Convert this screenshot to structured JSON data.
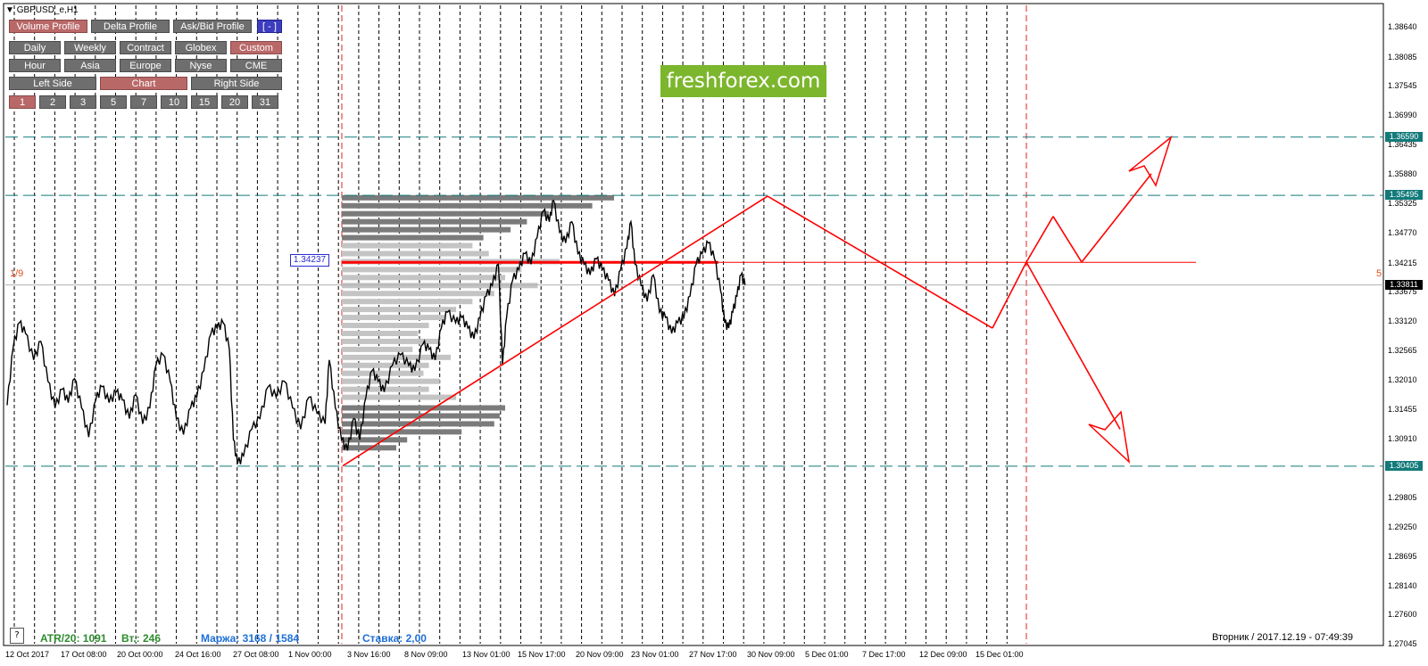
{
  "window": {
    "symbol": "GBPUSD_e,H1"
  },
  "toolbar": {
    "row1": [
      {
        "label": "Volume Profile",
        "active": true
      },
      {
        "label": "Delta Profile",
        "active": false
      },
      {
        "label": "Ask/Bid Profile",
        "active": false
      },
      {
        "label": "[ - ]",
        "active": false,
        "blue": true
      }
    ],
    "row2": [
      {
        "label": "Daily",
        "active": false
      },
      {
        "label": "Weekly",
        "active": false
      },
      {
        "label": "Contract",
        "active": false
      },
      {
        "label": "Globex",
        "active": false
      },
      {
        "label": "Custom",
        "active": true
      }
    ],
    "row3": [
      {
        "label": "Hour",
        "active": false
      },
      {
        "label": "Asia",
        "active": false
      },
      {
        "label": "Europe",
        "active": false
      },
      {
        "label": "Nyse",
        "active": false
      },
      {
        "label": "CME",
        "active": false
      }
    ],
    "row4": [
      {
        "label": "Left Side",
        "active": false
      },
      {
        "label": "Chart",
        "active": true
      },
      {
        "label": "Right Side",
        "active": false
      }
    ],
    "row5": [
      {
        "label": "1",
        "active": true
      },
      {
        "label": "2",
        "active": false
      },
      {
        "label": "3",
        "active": false
      },
      {
        "label": "5",
        "active": false
      },
      {
        "label": "7",
        "active": false
      },
      {
        "label": "10",
        "active": false
      },
      {
        "label": "15",
        "active": false
      },
      {
        "label": "20",
        "active": false
      },
      {
        "label": "31",
        "active": false
      }
    ]
  },
  "logo": {
    "text": "freshforex.com"
  },
  "profile": {
    "poc_label": "1.34237",
    "left_marker": "1/9",
    "right_marker": "5"
  },
  "status_bar": {
    "help": "?",
    "atr": "ATR/20: 1091",
    "vt": "Вт.: 246",
    "margin": "Маржа: 3168 / 1584",
    "rate": "Ставка: 2,00",
    "datetime": "Вторник  /  2017.12.19  -  07:49:39"
  },
  "colors": {
    "candles": "#000000",
    "profile_dark": "#7b7b7b",
    "profile_light": "#c4c4c4",
    "poc_line": "#ff0000",
    "pattern": "#ff0000",
    "level_lines": "#127a7a",
    "status_green": "#2e8b2e",
    "status_blue": "#1e6fd9",
    "logo_bg": "#7cb62d"
  },
  "chart_data": {
    "type": "line",
    "series_kind": "candlestick (approximated as close-price path)",
    "price_ticks": [
      "1.38640",
      "1.38085",
      "1.37545",
      "1.36990",
      "1.36435",
      "1.35880",
      "1.35325",
      "1.34770",
      "1.34215",
      "1.33675",
      "1.33120",
      "1.32565",
      "1.32010",
      "1.31455",
      "1.30910",
      "1.29805",
      "1.29250",
      "1.28695",
      "1.28140",
      "1.27600",
      "1.27045"
    ],
    "price_tags": [
      {
        "value": "1.36590",
        "style": "teal"
      },
      {
        "value": "1.35495",
        "style": "teal"
      },
      {
        "value": "1.33811",
        "style": "dark"
      },
      {
        "value": "1.30405",
        "style": "teal"
      }
    ],
    "time_labels": [
      "12 Oct 2017",
      "17 Oct 08:00",
      "20 Oct 00:00",
      "24 Oct 16:00",
      "27 Oct 08:00",
      "1 Nov 00:00",
      "3 Nov 16:00",
      "8 Nov 09:00",
      "13 Nov 01:00",
      "15 Nov 17:00",
      "20 Nov 09:00",
      "23 Nov 01:00",
      "27 Nov 17:00",
      "30 Nov 09:00",
      "5 Dec 01:00",
      "7 Dec 17:00",
      "12 Dec 09:00",
      "15 Dec 01:00"
    ],
    "ylim": [
      1.269,
      1.39
    ],
    "levels": [
      1.3659,
      1.35495,
      1.30405
    ],
    "poc": 1.34237,
    "last_price": 1.33811,
    "price_path": [
      [
        0.0,
        1.3155
      ],
      [
        0.006,
        1.3265
      ],
      [
        0.012,
        1.331
      ],
      [
        0.018,
        1.329
      ],
      [
        0.026,
        1.324
      ],
      [
        0.033,
        1.3275
      ],
      [
        0.04,
        1.32
      ],
      [
        0.047,
        1.315
      ],
      [
        0.054,
        1.3185
      ],
      [
        0.06,
        1.316
      ],
      [
        0.066,
        1.3205
      ],
      [
        0.073,
        1.315
      ],
      [
        0.08,
        1.3095
      ],
      [
        0.087,
        1.3165
      ],
      [
        0.093,
        1.319
      ],
      [
        0.1,
        1.316
      ],
      [
        0.107,
        1.318
      ],
      [
        0.113,
        1.3165
      ],
      [
        0.12,
        1.313
      ],
      [
        0.126,
        1.3175
      ],
      [
        0.133,
        1.312
      ],
      [
        0.14,
        1.315
      ],
      [
        0.146,
        1.323
      ],
      [
        0.153,
        1.325
      ],
      [
        0.16,
        1.32
      ],
      [
        0.166,
        1.313
      ],
      [
        0.173,
        1.31
      ],
      [
        0.18,
        1.315
      ],
      [
        0.186,
        1.317
      ],
      [
        0.193,
        1.322
      ],
      [
        0.2,
        1.329
      ],
      [
        0.206,
        1.33
      ],
      [
        0.212,
        1.331
      ],
      [
        0.218,
        1.326
      ],
      [
        0.222,
        1.309
      ],
      [
        0.226,
        1.3045
      ],
      [
        0.232,
        1.306
      ],
      [
        0.24,
        1.311
      ],
      [
        0.248,
        1.313
      ],
      [
        0.256,
        1.319
      ],
      [
        0.264,
        1.317
      ],
      [
        0.272,
        1.32
      ],
      [
        0.28,
        1.315
      ],
      [
        0.288,
        1.311
      ],
      [
        0.296,
        1.317
      ],
      [
        0.304,
        1.314
      ],
      [
        0.312,
        1.312
      ],
      [
        0.316,
        1.324
      ],
      [
        0.322,
        1.315
      ],
      [
        0.328,
        1.309
      ],
      [
        0.334,
        1.307
      ],
      [
        0.34,
        1.313
      ],
      [
        0.346,
        1.309
      ],
      [
        0.352,
        1.317
      ],
      [
        0.358,
        1.322
      ],
      [
        0.364,
        1.32
      ],
      [
        0.37,
        1.318
      ],
      [
        0.378,
        1.323
      ],
      [
        0.386,
        1.325
      ],
      [
        0.394,
        1.323
      ],
      [
        0.4,
        1.322
      ],
      [
        0.408,
        1.327
      ],
      [
        0.414,
        1.326
      ],
      [
        0.42,
        1.324
      ],
      [
        0.426,
        1.33
      ],
      [
        0.432,
        1.333
      ],
      [
        0.44,
        1.331
      ],
      [
        0.446,
        1.332
      ],
      [
        0.452,
        1.33
      ],
      [
        0.458,
        1.328
      ],
      [
        0.464,
        1.332
      ],
      [
        0.47,
        1.336
      ],
      [
        0.476,
        1.338
      ],
      [
        0.482,
        1.342
      ],
      [
        0.486,
        1.323
      ],
      [
        0.49,
        1.332
      ],
      [
        0.496,
        1.339
      ],
      [
        0.502,
        1.341
      ],
      [
        0.508,
        1.344
      ],
      [
        0.514,
        1.342
      ],
      [
        0.52,
        1.347
      ],
      [
        0.526,
        1.352
      ],
      [
        0.532,
        1.35
      ],
      [
        0.536,
        1.354
      ],
      [
        0.542,
        1.348
      ],
      [
        0.548,
        1.346
      ],
      [
        0.554,
        1.35
      ],
      [
        0.56,
        1.344
      ],
      [
        0.566,
        1.342
      ],
      [
        0.572,
        1.34
      ],
      [
        0.578,
        1.343
      ],
      [
        0.584,
        1.341
      ],
      [
        0.59,
        1.339
      ],
      [
        0.596,
        1.336
      ],
      [
        0.602,
        1.341
      ],
      [
        0.608,
        1.345
      ],
      [
        0.612,
        1.35
      ],
      [
        0.616,
        1.342
      ],
      [
        0.622,
        1.338
      ],
      [
        0.628,
        1.335
      ],
      [
        0.634,
        1.34
      ],
      [
        0.64,
        1.333
      ],
      [
        0.646,
        1.332
      ],
      [
        0.652,
        1.329
      ],
      [
        0.658,
        1.331
      ],
      [
        0.664,
        1.332
      ],
      [
        0.67,
        1.336
      ],
      [
        0.676,
        1.342
      ],
      [
        0.682,
        1.344
      ],
      [
        0.688,
        1.346
      ],
      [
        0.694,
        1.343
      ],
      [
        0.7,
        1.337
      ],
      [
        0.704,
        1.331
      ],
      [
        0.708,
        1.33
      ],
      [
        0.712,
        1.333
      ],
      [
        0.716,
        1.336
      ],
      [
        0.72,
        1.34
      ],
      [
        0.724,
        1.3381
      ]
    ],
    "volume_profile_dark_bands": [
      [
        1.3545,
        0.5
      ],
      [
        1.353,
        0.46
      ],
      [
        1.3515,
        0.38
      ],
      [
        1.35,
        0.34
      ],
      [
        1.3485,
        0.31
      ],
      [
        1.347,
        0.26
      ],
      [
        1.315,
        0.3
      ],
      [
        1.3135,
        0.29
      ],
      [
        1.312,
        0.28
      ],
      [
        1.3105,
        0.22
      ],
      [
        1.309,
        0.12
      ],
      [
        1.3075,
        0.1
      ]
    ],
    "volume_profile_light": [
      [
        1.3455,
        0.24
      ],
      [
        1.344,
        0.27
      ],
      [
        1.3425,
        0.4
      ],
      [
        1.341,
        0.33
      ],
      [
        1.3395,
        0.3
      ],
      [
        1.338,
        0.36
      ],
      [
        1.3365,
        0.28
      ],
      [
        1.335,
        0.24
      ],
      [
        1.3335,
        0.21
      ],
      [
        1.332,
        0.19
      ],
      [
        1.3305,
        0.16
      ],
      [
        1.329,
        0.14
      ],
      [
        1.3275,
        0.18
      ],
      [
        1.326,
        0.13
      ],
      [
        1.3245,
        0.2
      ],
      [
        1.323,
        0.16
      ],
      [
        1.3215,
        0.15
      ],
      [
        1.32,
        0.18
      ],
      [
        1.3185,
        0.16
      ],
      [
        1.317,
        0.21
      ]
    ]
  }
}
